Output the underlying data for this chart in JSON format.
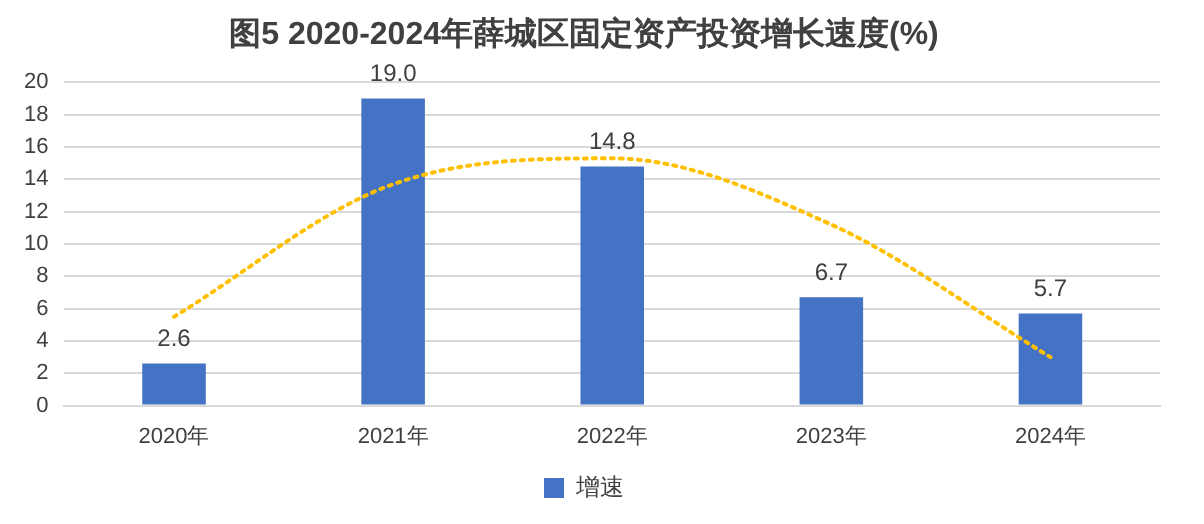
{
  "chart_data": {
    "type": "bar",
    "title": "图5 2020-2024年薛城区固定资产投资增长速度(%)",
    "categories": [
      "2020年",
      "2021年",
      "2022年",
      "2023年",
      "2024年"
    ],
    "series": [
      {
        "name": "增速",
        "color": "#4472c4",
        "values": [
          2.6,
          19.0,
          14.8,
          6.7,
          5.7
        ],
        "value_labels": [
          "2.6",
          "19.0",
          "14.8",
          "6.7",
          "5.7"
        ]
      },
      {
        "type": "line",
        "color": "#ffc000",
        "line_style": "dotted",
        "marker": "none",
        "values": [
          5.5,
          13.7,
          15.3,
          11.2,
          3.0
        ]
      }
    ],
    "ylim": [
      0,
      20
    ],
    "yticks": [
      0,
      2,
      4,
      6,
      8,
      10,
      12,
      14,
      16,
      18,
      20
    ],
    "grid": "y",
    "legend": "bottom"
  }
}
